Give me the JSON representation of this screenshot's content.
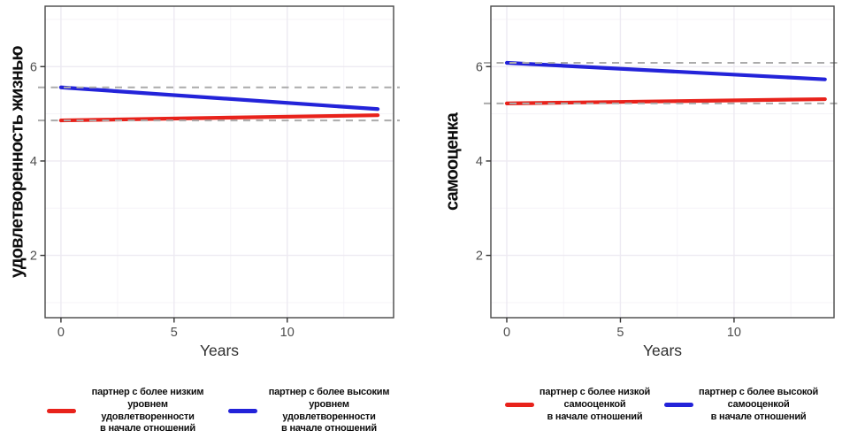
{
  "page": {
    "background": "#ffffff"
  },
  "chart_data": [
    {
      "type": "line",
      "title": "",
      "xlabel": "Years",
      "ylabel": "удовлетворенность жизнью",
      "x_ticks": [
        0,
        5,
        10
      ],
      "y_ticks": [
        2,
        4,
        6
      ],
      "x_minor_gridlines": [
        2.5,
        7.5,
        12.5
      ],
      "y_minor_gridlines": [
        1,
        3,
        5,
        7
      ],
      "xlim": [
        -0.7,
        14.7
      ],
      "ylim": [
        0.68,
        7.28
      ],
      "grid": "on",
      "legend_position": "bottom",
      "x": [
        0,
        14
      ],
      "series": [
        {
          "name": "партнер с более низким\nуровнем удовлетворенности\nв начале отношений",
          "color": "#e8221b",
          "values": [
            4.86,
            4.97
          ]
        },
        {
          "name": "партнер с более высоким\nуровнем удовлетворенности\nв начале отношений",
          "color": "#2323d9",
          "values": [
            5.56,
            5.1
          ]
        }
      ],
      "reference_lines": [
        {
          "y": 5.56,
          "style": "dashed",
          "color": "#ababab"
        },
        {
          "y": 4.86,
          "style": "dashed",
          "color": "#ababab"
        }
      ]
    },
    {
      "type": "line",
      "title": "",
      "xlabel": "Years",
      "ylabel": "самооценка",
      "x_ticks": [
        0,
        5,
        10
      ],
      "y_ticks": [
        2,
        4,
        6
      ],
      "x_minor_gridlines": [
        2.5,
        7.5,
        12.5
      ],
      "y_minor_gridlines": [
        1,
        3,
        5,
        7
      ],
      "xlim": [
        -0.7,
        14.4
      ],
      "ylim": [
        0.68,
        7.28
      ],
      "grid": "on",
      "legend_position": "bottom",
      "x": [
        0,
        14
      ],
      "series": [
        {
          "name": "партнер с более низкой\nсамооценкой\nв начале отношений",
          "color": "#e8221b",
          "values": [
            5.22,
            5.31
          ]
        },
        {
          "name": "партнер с более высокой\nсамооценкой\nв начале отношений",
          "color": "#2323d9",
          "values": [
            6.08,
            5.73
          ]
        }
      ],
      "reference_lines": [
        {
          "y": 6.08,
          "style": "dashed",
          "color": "#ababab"
        },
        {
          "y": 5.22,
          "style": "dashed",
          "color": "#ababab"
        }
      ]
    }
  ]
}
